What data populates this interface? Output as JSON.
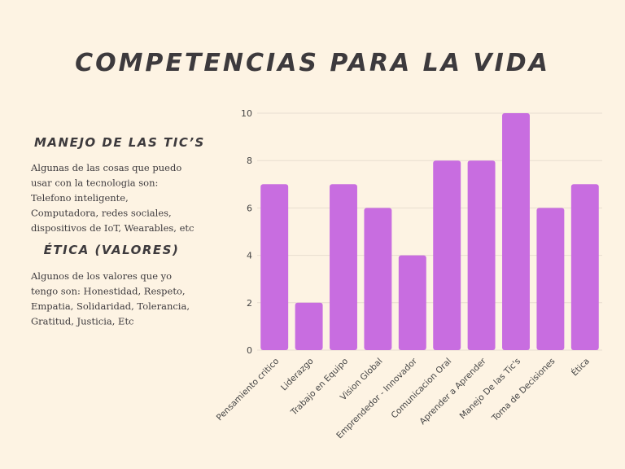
{
  "title": "COMPETENCIAS PARA LA VIDA",
  "sections": [
    {
      "heading": "MANEJO DE LAS TIC’S",
      "lines": [
        "Algunas de las cosas que puedo",
        "usar con la tecnologia son:",
        "Telefono  inteligente,",
        "Computadora, redes sociales,",
        "dispositivos de IoT, Wearables, etc"
      ]
    },
    {
      "heading": "ÉTICA (VALORES)",
      "lines": [
        "Algunos de los valores que yo",
        "tengo son: Honestidad, Respeto,",
        "Empatia, Solidaridad, Tolerancia,",
        "Gratitud, Justicia, Etc"
      ]
    }
  ],
  "chart_data": {
    "type": "bar",
    "categories": [
      "Pensamiento critico",
      "Liderazgo",
      "Trabajo en Equipo",
      "Vision Global",
      "Emprendedor - Innovador",
      "Comunicacion Oral",
      "Aprender a Aprender",
      "Manejo De las Tic's",
      "Toma de Decisiones",
      "Ética"
    ],
    "values": [
      7,
      2,
      7,
      6,
      4,
      8,
      8,
      10,
      6,
      7
    ],
    "color": "#c86de0",
    "ylim": [
      0,
      10
    ],
    "yticks": [
      0,
      2,
      4,
      6,
      8,
      10
    ],
    "grid": true
  }
}
